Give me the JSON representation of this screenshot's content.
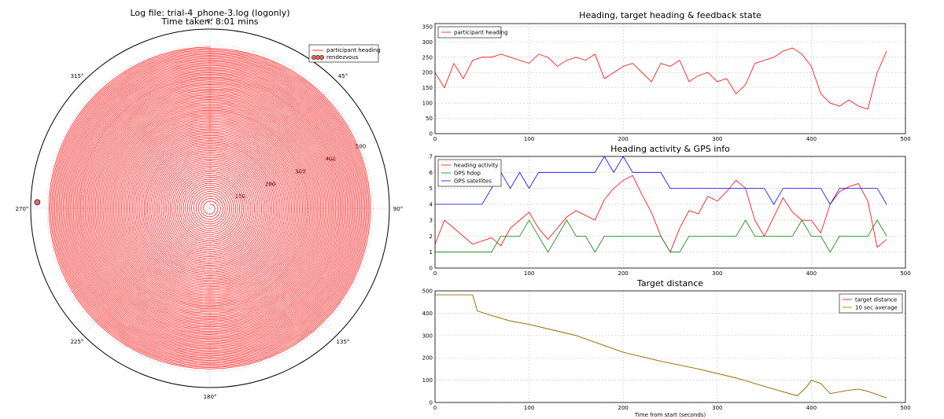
{
  "figure": {
    "title_line1": "Log file: trial-4_phone-3.log (logonly)",
    "title_line2": "Time taken: 8:01 mins"
  },
  "chart_data": [
    {
      "type": "polar",
      "legend": [
        "participant heading",
        "rendezvous"
      ],
      "angle_labels": [
        "0°",
        "45°",
        "90°",
        "135°",
        "180°",
        "225°",
        "270°",
        "315°"
      ],
      "radial_labels": [
        "100",
        "200",
        "300",
        "400",
        "500"
      ],
      "rmax": 550,
      "spiral": {
        "turns": 95,
        "r_start": 12,
        "r_end": 495
      },
      "rendezvous": {
        "angle_deg": 272,
        "radius": 530
      },
      "colors": {
        "heading": "#ff0000",
        "rendezvous": "#e06a62"
      }
    },
    {
      "type": "line",
      "title": "Heading, target heading & feedback state",
      "xlim": [
        0,
        500
      ],
      "ylim": [
        0,
        360
      ],
      "x_ticks": [
        "0",
        "100",
        "200",
        "300",
        "400",
        "500"
      ],
      "y_ticks": [
        "0",
        "50",
        "100",
        "150",
        "200",
        "250",
        "300",
        "350"
      ],
      "legend": [
        "participant heading"
      ],
      "series": [
        {
          "name": "participant heading",
          "color": "#ff0000",
          "x": [
            0,
            10,
            20,
            30,
            40,
            50,
            60,
            70,
            80,
            90,
            100,
            110,
            120,
            130,
            140,
            150,
            160,
            170,
            180,
            190,
            200,
            210,
            220,
            230,
            240,
            250,
            260,
            270,
            280,
            290,
            300,
            310,
            320,
            330,
            340,
            350,
            360,
            370,
            380,
            390,
            400,
            410,
            420,
            430,
            440,
            450,
            460,
            470,
            480
          ],
          "y": [
            200,
            150,
            230,
            180,
            240,
            250,
            250,
            260,
            250,
            240,
            230,
            260,
            250,
            220,
            240,
            250,
            240,
            260,
            180,
            200,
            220,
            230,
            200,
            170,
            230,
            220,
            240,
            170,
            190,
            200,
            170,
            180,
            130,
            160,
            230,
            240,
            250,
            270,
            280,
            260,
            220,
            130,
            100,
            90,
            110,
            90,
            80,
            200,
            270
          ]
        }
      ]
    },
    {
      "type": "line",
      "title": "Heading activity & GPS info",
      "xlim": [
        0,
        500
      ],
      "ylim": [
        0,
        7
      ],
      "x_ticks": [
        "0",
        "100",
        "200",
        "300",
        "400",
        "500"
      ],
      "y_ticks": [
        "0",
        "1",
        "2",
        "3",
        "4",
        "5",
        "6",
        "7"
      ],
      "legend": [
        "heading activity",
        "GPS hdop",
        "GPS satellites"
      ],
      "series": [
        {
          "name": "heading activity",
          "color": "#ff0000",
          "x": [
            0,
            10,
            20,
            30,
            40,
            50,
            60,
            70,
            80,
            90,
            100,
            110,
            120,
            130,
            140,
            150,
            160,
            170,
            180,
            190,
            200,
            210,
            220,
            230,
            240,
            250,
            260,
            270,
            280,
            290,
            300,
            310,
            320,
            330,
            340,
            350,
            360,
            370,
            380,
            390,
            400,
            410,
            420,
            430,
            440,
            450,
            460,
            470,
            480
          ],
          "y": [
            1.5,
            3,
            2.5,
            2,
            1.5,
            1.7,
            1.9,
            1.4,
            2.5,
            3,
            3.5,
            2.5,
            1.8,
            2.5,
            3.2,
            3.6,
            3.3,
            3,
            4.3,
            5,
            5.5,
            5.8,
            4.6,
            3.5,
            2,
            1,
            2.5,
            3.6,
            3.4,
            4.5,
            4.2,
            4.8,
            5.5,
            5,
            3,
            2,
            3.2,
            4.4,
            3.5,
            3,
            3,
            2.2,
            4,
            4.8,
            5.1,
            5.3,
            4.2,
            1.3,
            1.8
          ]
        },
        {
          "name": "GPS hdop",
          "color": "#008000",
          "x": [
            0,
            10,
            20,
            30,
            40,
            50,
            60,
            70,
            80,
            90,
            100,
            110,
            120,
            130,
            140,
            150,
            160,
            170,
            180,
            190,
            200,
            210,
            220,
            230,
            240,
            250,
            260,
            270,
            280,
            290,
            300,
            310,
            320,
            330,
            340,
            350,
            360,
            370,
            380,
            390,
            400,
            410,
            420,
            430,
            440,
            450,
            460,
            470,
            480
          ],
          "y": [
            1,
            1,
            1,
            1,
            1,
            1,
            1,
            2,
            2,
            2,
            3,
            2,
            1,
            2,
            3,
            2,
            2,
            1,
            2,
            2,
            2,
            2,
            2,
            2,
            2,
            1,
            1,
            2,
            2,
            2,
            2,
            2,
            2,
            3,
            2,
            2,
            2,
            2,
            2,
            3,
            2,
            2,
            1,
            2,
            2,
            2,
            2,
            3,
            2
          ]
        },
        {
          "name": "GPS satellites",
          "color": "#0000ff",
          "x": [
            0,
            10,
            20,
            30,
            40,
            50,
            60,
            70,
            80,
            90,
            100,
            110,
            120,
            130,
            140,
            150,
            160,
            170,
            180,
            190,
            200,
            210,
            220,
            230,
            240,
            250,
            260,
            270,
            280,
            290,
            300,
            310,
            320,
            330,
            340,
            350,
            360,
            370,
            380,
            390,
            400,
            410,
            420,
            430,
            440,
            450,
            460,
            470,
            480
          ],
          "y": [
            4,
            4,
            4,
            4,
            4,
            4,
            5,
            6,
            5,
            6,
            5,
            6,
            6,
            6,
            6,
            6,
            6,
            6,
            7,
            6,
            7,
            6,
            6,
            6,
            6,
            5,
            5,
            5,
            5,
            5,
            5,
            5,
            5,
            5,
            5,
            5,
            4,
            5,
            5,
            5,
            5,
            5,
            4,
            5,
            5,
            5,
            5,
            5,
            4
          ]
        }
      ]
    },
    {
      "type": "line",
      "title": "Target distance",
      "xlabel": "Time from start (seconds)",
      "xlim": [
        0,
        500
      ],
      "ylim": [
        0,
        500
      ],
      "x_ticks": [
        "0",
        "100",
        "200",
        "300",
        "400",
        "500"
      ],
      "y_ticks": [
        "0",
        "100",
        "200",
        "300",
        "400",
        "500"
      ],
      "legend": [
        "target distance",
        "10 sec average"
      ],
      "series": [
        {
          "name": "target distance",
          "color": "#ff0000",
          "x": [
            0,
            40,
            45,
            60,
            80,
            100,
            120,
            150,
            160,
            200,
            240,
            280,
            320,
            360,
            385,
            395,
            400,
            410,
            420,
            440,
            450,
            460,
            480
          ],
          "y": [
            482,
            482,
            410,
            390,
            365,
            350,
            330,
            300,
            285,
            225,
            185,
            150,
            110,
            60,
            30,
            70,
            100,
            85,
            40,
            55,
            60,
            50,
            20
          ]
        },
        {
          "name": "10 sec average",
          "color": "#808000",
          "x": [
            0,
            40,
            45,
            60,
            80,
            100,
            120,
            150,
            160,
            200,
            240,
            280,
            320,
            360,
            385,
            395,
            400,
            410,
            420,
            440,
            450,
            460,
            480
          ],
          "y": [
            482,
            482,
            410,
            390,
            365,
            350,
            330,
            300,
            285,
            225,
            185,
            150,
            110,
            60,
            30,
            70,
            100,
            85,
            40,
            55,
            60,
            50,
            20
          ]
        }
      ]
    }
  ]
}
